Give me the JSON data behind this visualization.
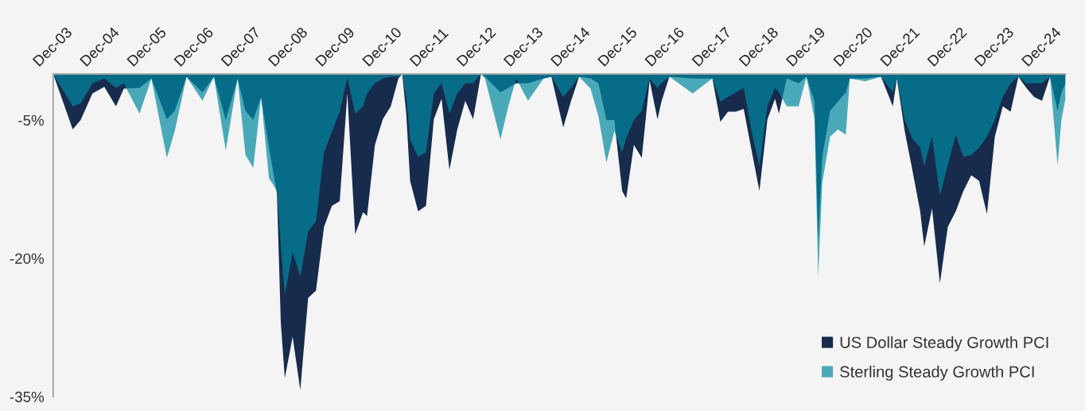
{
  "chart_data": {
    "type": "area",
    "x": [
      "2003-12",
      "2004-05",
      "2004-07",
      "2004-10",
      "2005-01",
      "2005-04",
      "2005-06",
      "2005-10",
      "2006-01",
      "2006-05",
      "2006-07",
      "2006-10",
      "2007-02",
      "2007-05",
      "2007-08",
      "2007-11",
      "2008-01",
      "2008-03",
      "2008-05",
      "2008-07",
      "2008-09",
      "2008-10",
      "2008-11",
      "2009-01",
      "2009-03",
      "2009-05",
      "2009-07",
      "2009-09",
      "2009-11",
      "2010-01",
      "2010-03",
      "2010-05",
      "2010-07",
      "2010-08",
      "2010-10",
      "2010-12",
      "2011-02",
      "2011-04",
      "2011-05",
      "2011-06",
      "2011-07",
      "2011-09",
      "2011-11",
      "2012-01",
      "2012-03",
      "2012-05",
      "2012-07",
      "2012-09",
      "2012-11",
      "2013-01",
      "2013-02",
      "2013-06",
      "2013-08",
      "2013-10",
      "2014-01",
      "2014-05",
      "2014-07",
      "2014-10",
      "2014-12",
      "2015-02",
      "2015-05",
      "2015-07",
      "2015-09",
      "2015-11",
      "2016-01",
      "2016-02",
      "2016-04",
      "2016-06",
      "2016-08",
      "2016-10",
      "2016-11",
      "2017-01",
      "2017-07",
      "2017-12",
      "2018-02",
      "2018-04",
      "2018-06",
      "2018-08",
      "2018-10",
      "2018-12",
      "2019-02",
      "2019-04",
      "2019-05",
      "2019-07",
      "2019-10",
      "2019-12",
      "2020-02",
      "2020-03",
      "2020-04",
      "2020-06",
      "2020-08",
      "2020-10",
      "2020-11",
      "2021-03",
      "2021-07",
      "2021-10",
      "2021-11",
      "2022-01",
      "2022-03",
      "2022-05",
      "2022-06",
      "2022-08",
      "2022-10",
      "2022-12",
      "2023-02",
      "2023-04",
      "2023-06",
      "2023-08",
      "2023-10",
      "2023-12",
      "2024-02",
      "2024-04",
      "2024-06",
      "2024-08",
      "2024-10",
      "2024-12",
      "2025-02",
      "2025-04",
      "2025-05",
      "2025-06"
    ],
    "series": [
      {
        "name": "US Dollar Steady Growth PCI",
        "color": "#172b4d",
        "values": [
          0,
          -6.0,
          -5.0,
          -2.1,
          -1.4,
          -3.5,
          -1.6,
          -1.5,
          -0.5,
          -4.9,
          -4.0,
          -0.3,
          -2.0,
          -0.3,
          -5.0,
          -0.5,
          -4.0,
          -5.0,
          -2.5,
          -8.0,
          -13.0,
          -27.0,
          -33.0,
          -28.5,
          -34.3,
          -24.3,
          -23.5,
          -16.6,
          -14.3,
          -13.8,
          -2.1,
          -17.4,
          -15.0,
          -15.4,
          -7.7,
          -4.9,
          -3.5,
          -0.5,
          0,
          -4.3,
          -11.6,
          -14.9,
          -14.3,
          -4.9,
          -2.7,
          -10.4,
          -6.0,
          -2.9,
          -4.9,
          0,
          -0.3,
          -2.0,
          -1.5,
          -1.0,
          -1.0,
          -0.5,
          -0.3,
          -5.8,
          -2.9,
          -0.3,
          -0.5,
          -1.0,
          -5.0,
          -5.0,
          -12.7,
          -13.5,
          -7.7,
          -9.1,
          -0.7,
          -4.9,
          -3.0,
          -0.3,
          -0.5,
          -0.5,
          -5.2,
          -4.1,
          -4.1,
          -3.8,
          -8.3,
          -12.7,
          -4.9,
          -2.7,
          -4.3,
          -0.5,
          -1.0,
          -0.3,
          -3.0,
          -18.0,
          -9.0,
          -4.0,
          -3.0,
          -2.0,
          -0.5,
          -0.5,
          -0.3,
          -3.5,
          -0.5,
          -6.2,
          -10.4,
          -14.9,
          -18.7,
          -14.6,
          -22.7,
          -16.6,
          -14.9,
          -12.7,
          -11.0,
          -11.6,
          -15.2,
          -6.8,
          -3.5,
          -4.1,
          -0.3,
          -1.5,
          -2.5,
          -2.9,
          -0.3,
          -4.0,
          -2.0,
          -1.0
        ]
      },
      {
        "name": "Sterling Steady Growth PCI",
        "color": "#4aa9b9",
        "values": [
          0,
          -3.5,
          -3.2,
          -1.0,
          -0.5,
          -1.5,
          -1.0,
          -4.3,
          -0.5,
          -9.1,
          -6.2,
          -0.3,
          -2.9,
          -0.3,
          -8.3,
          -0.5,
          -8.8,
          -10.2,
          -2.5,
          -11.3,
          -12.7,
          -18.7,
          -24.0,
          -19.3,
          -22.0,
          -17.1,
          -16.0,
          -8.5,
          -6.3,
          -4.1,
          -0.4,
          -4.3,
          -3.5,
          -2.1,
          -1.0,
          -0.5,
          -0.3,
          -0.3,
          0,
          -2.5,
          -7.1,
          -9.0,
          -8.5,
          -2.1,
          -1.0,
          -4.3,
          -2.1,
          -1.0,
          -1.0,
          0,
          -0.5,
          -7.1,
          -3.5,
          -0.5,
          -2.9,
          -0.5,
          -0.3,
          -2.5,
          -1.5,
          -0.3,
          -1.6,
          -4.6,
          -9.6,
          -6.2,
          -8.5,
          -7.0,
          -5.0,
          -4.0,
          -0.5,
          -1.5,
          -1.0,
          -0.3,
          -2.1,
          -0.5,
          -3.0,
          -2.5,
          -2.0,
          -1.5,
          -6.2,
          -10.0,
          -3.5,
          -1.5,
          -2.0,
          -3.5,
          -3.5,
          -0.3,
          -4.9,
          -22.0,
          -11.8,
          -6.8,
          -6.0,
          -6.6,
          -0.5,
          -0.8,
          -0.3,
          -2.0,
          -0.5,
          -5.0,
          -7.0,
          -8.0,
          -10.0,
          -6.8,
          -13.2,
          -9.9,
          -6.6,
          -9.0,
          -8.8,
          -8.0,
          -6.8,
          -5.0,
          -2.5,
          -1.0,
          -0.3,
          -1.0,
          -1.0,
          -1.0,
          -0.3,
          -9.9,
          -4.9,
          -2.7
        ]
      }
    ],
    "xlim": [
      "2003-12",
      "2025-06"
    ],
    "xticks": [
      {
        "value": "2003-12",
        "label": "Dec-03"
      },
      {
        "value": "2004-12",
        "label": "Dec-04"
      },
      {
        "value": "2005-12",
        "label": "Dec-05"
      },
      {
        "value": "2006-12",
        "label": "Dec-06"
      },
      {
        "value": "2007-12",
        "label": "Dec-07"
      },
      {
        "value": "2008-12",
        "label": "Dec-08"
      },
      {
        "value": "2009-12",
        "label": "Dec-09"
      },
      {
        "value": "2010-12",
        "label": "Dec-10"
      },
      {
        "value": "2011-12",
        "label": "Dec-11"
      },
      {
        "value": "2012-12",
        "label": "Dec-12"
      },
      {
        "value": "2013-12",
        "label": "Dec-13"
      },
      {
        "value": "2014-12",
        "label": "Dec-14"
      },
      {
        "value": "2015-12",
        "label": "Dec-15"
      },
      {
        "value": "2016-12",
        "label": "Dec-16"
      },
      {
        "value": "2017-12",
        "label": "Dec-17"
      },
      {
        "value": "2018-12",
        "label": "Dec-18"
      },
      {
        "value": "2019-12",
        "label": "Dec-19"
      },
      {
        "value": "2020-12",
        "label": "Dec-20"
      },
      {
        "value": "2021-12",
        "label": "Dec-21"
      },
      {
        "value": "2022-12",
        "label": "Dec-22"
      },
      {
        "value": "2023-12",
        "label": "Dec-23"
      },
      {
        "value": "2024-12",
        "label": "Dec-24"
      }
    ],
    "ylim": [
      -35,
      0
    ],
    "yticks": [
      {
        "value": -5,
        "label": "-5%"
      },
      {
        "value": -20,
        "label": "-20%"
      },
      {
        "value": -35,
        "label": "-35%"
      }
    ],
    "grid": false,
    "legend": "bottom right"
  }
}
